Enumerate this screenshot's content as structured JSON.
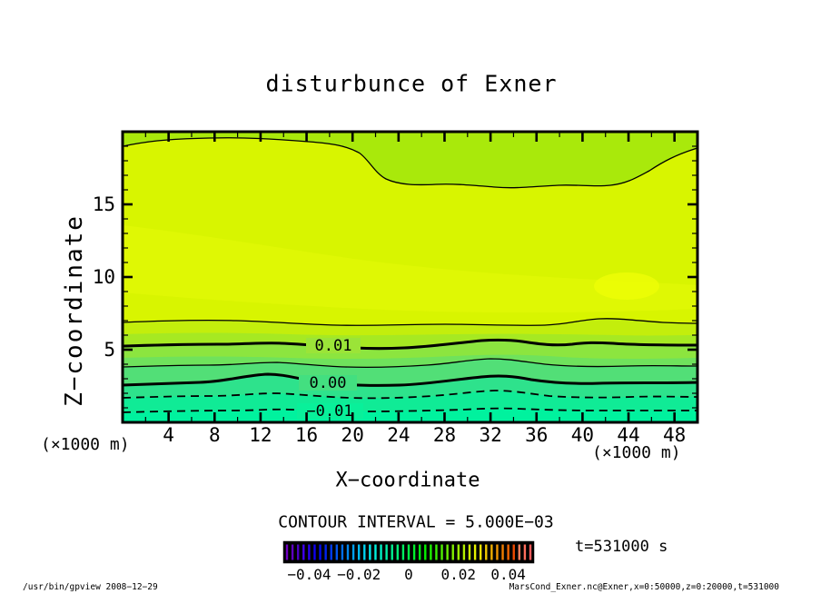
{
  "title": "disturbunce of Exner",
  "axes": {
    "x": {
      "label": "X−coordinate",
      "unit": "(×1000 m)",
      "range": [
        0,
        50
      ],
      "major_ticks": [
        4,
        8,
        12,
        16,
        20,
        24,
        28,
        32,
        36,
        40,
        44,
        48
      ],
      "minor_step": 2
    },
    "z": {
      "label": "Z−coordinate",
      "unit": "(×1000 m)",
      "range": [
        0,
        20
      ],
      "major_ticks": [
        5,
        10,
        15
      ],
      "minor_step": 1
    }
  },
  "annotations": {
    "contour_interval": "CONTOUR INTERVAL = 5.000E−03",
    "time_label": "t=531000 s"
  },
  "contour_labels": [
    "0.01",
    "0.00",
    "−0.01"
  ],
  "colorbar": {
    "domain": [
      -0.05,
      0.05
    ],
    "ticks": [
      {
        "v": -0.04,
        "label": "−0.04"
      },
      {
        "v": -0.02,
        "label": "−0.02"
      },
      {
        "v": 0,
        "label": "0"
      },
      {
        "v": 0.02,
        "label": "0.02"
      },
      {
        "v": 0.04,
        "label": "0.04"
      }
    ],
    "style": "striped-rainbow-on-black"
  },
  "footer": {
    "left": "/usr/bin/gpview  2008−12−29",
    "right": "MarsCond_Exner.nc@Exner,x=0:50000,z=0:20000,t=531000"
  },
  "chart_data": {
    "type": "filled-contour",
    "title": "disturbunce of Exner",
    "xlabel": "X-coordinate (×1000 m)",
    "ylabel": "Z-coordinate (×1000 m)",
    "x_range_m": [
      0,
      50000
    ],
    "z_range_m": [
      0,
      20000
    ],
    "time_s": 531000,
    "contour_interval": 0.005,
    "labeled_contour_values": [
      0.01,
      0.0,
      -0.01
    ],
    "contours": [
      {
        "level": 0.02,
        "style": "thin-solid",
        "profile_x_km": [
          0,
          8,
          16,
          20,
          23,
          28,
          33,
          40,
          44,
          47,
          50
        ],
        "profile_z_km": [
          19.0,
          19.6,
          19.3,
          18.6,
          16.8,
          16.4,
          16.2,
          16.3,
          16.4,
          17.7,
          18.9
        ]
      },
      {
        "level": 0.015,
        "style": "thin-solid",
        "profile_x_km": [
          0,
          10,
          20,
          30,
          41,
          50
        ],
        "profile_z_km": [
          6.9,
          7.0,
          6.7,
          6.7,
          7.1,
          6.8
        ]
      },
      {
        "level": 0.01,
        "style": "thick-solid",
        "label": "0.01",
        "profile_x_km": [
          0,
          13,
          23,
          32,
          39,
          42,
          50
        ],
        "profile_z_km": [
          5.25,
          5.4,
          5.1,
          5.7,
          5.3,
          5.5,
          5.3
        ]
      },
      {
        "level": 0.005,
        "style": "thin-solid",
        "profile_x_km": [
          0,
          13,
          24,
          31,
          40,
          50
        ],
        "profile_z_km": [
          3.8,
          4.1,
          3.8,
          4.4,
          3.8,
          3.9
        ]
      },
      {
        "level": 0.0,
        "style": "thick-solid",
        "label": "0.00",
        "profile_x_km": [
          0,
          12.5,
          22,
          31,
          38,
          50
        ],
        "profile_z_km": [
          2.6,
          3.3,
          2.5,
          3.1,
          2.7,
          2.75
        ]
      },
      {
        "level": -0.005,
        "style": "dashed",
        "profile_x_km": [
          0,
          13,
          24,
          32,
          42,
          50
        ],
        "profile_z_km": [
          1.7,
          2.0,
          1.7,
          2.2,
          1.7,
          1.75
        ]
      },
      {
        "level": -0.01,
        "style": "dashed",
        "label": "−0.01",
        "profile_x_km": [
          0,
          14,
          28,
          35,
          50
        ],
        "profile_z_km": [
          0.7,
          0.9,
          0.75,
          1.0,
          0.8
        ]
      }
    ],
    "fill_bands_bottom_to_top": [
      {
        "approx_levels": "below -0.010",
        "color": "#00f29e"
      },
      {
        "approx_levels": "-0.010 to -0.005",
        "color": "#10eb96"
      },
      {
        "approx_levels": "-0.005 to 0.000",
        "color": "#2ee28c"
      },
      {
        "approx_levels": "0.000 to 0.005",
        "color": "#52df77"
      },
      {
        "approx_levels": "0.005 to 0.010",
        "color": "#6fe25c / #8ce53f"
      },
      {
        "approx_levels": "0.010 to 0.015",
        "color": "#a6e922 / #c3ee0c"
      },
      {
        "approx_levels": "0.015 to 0.020 (main field)",
        "color": "#d8f500"
      },
      {
        "approx_levels": "above 0.020 (top band)",
        "color": "#a9e90b"
      }
    ],
    "legend": {
      "colorbar_domain": [
        -0.05,
        0.05
      ],
      "colorbar_ticks": [
        -0.04,
        -0.02,
        0,
        0.02,
        0.04
      ]
    },
    "grid": false
  }
}
